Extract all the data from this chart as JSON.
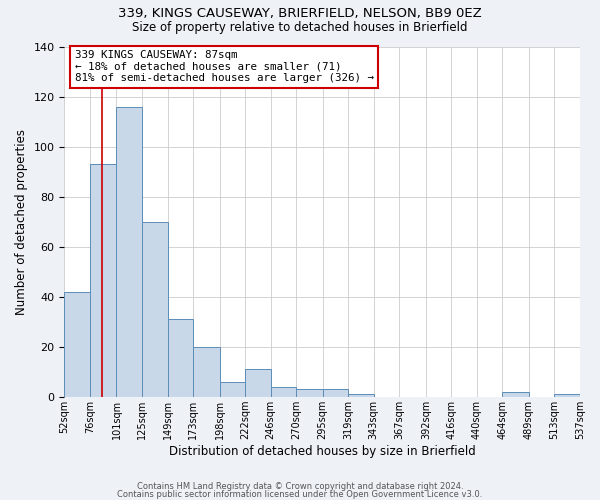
{
  "title1": "339, KINGS CAUSEWAY, BRIERFIELD, NELSON, BB9 0EZ",
  "title2": "Size of property relative to detached houses in Brierfield",
  "xlabel": "Distribution of detached houses by size in Brierfield",
  "ylabel": "Number of detached properties",
  "bar_color": "#c8d8e8",
  "bar_edge_color": "#5b8db8",
  "grid_color": "#cccccc",
  "annotation_box_edge": "#cc0000",
  "vline_color": "#cc0000",
  "bin_edges": [
    52,
    76,
    101,
    125,
    149,
    173,
    198,
    222,
    246,
    270,
    295,
    319,
    343,
    367,
    392,
    416,
    440,
    464,
    489,
    513,
    537
  ],
  "bar_heights": [
    42,
    93,
    116,
    70,
    31,
    20,
    6,
    11,
    4,
    3,
    3,
    1,
    0,
    0,
    0,
    0,
    0,
    2,
    0,
    1
  ],
  "vline_x": 87,
  "ylim": [
    0,
    140
  ],
  "yticks": [
    0,
    20,
    40,
    60,
    80,
    100,
    120,
    140
  ],
  "xtick_labels": [
    "52sqm",
    "76sqm",
    "101sqm",
    "125sqm",
    "149sqm",
    "173sqm",
    "198sqm",
    "222sqm",
    "246sqm",
    "270sqm",
    "295sqm",
    "319sqm",
    "343sqm",
    "367sqm",
    "392sqm",
    "416sqm",
    "440sqm",
    "464sqm",
    "489sqm",
    "513sqm",
    "537sqm"
  ],
  "annotation_text": "339 KINGS CAUSEWAY: 87sqm\n← 18% of detached houses are smaller (71)\n81% of semi-detached houses are larger (326) →",
  "footer1": "Contains HM Land Registry data © Crown copyright and database right 2024.",
  "footer2": "Contains public sector information licensed under the Open Government Licence v3.0.",
  "background_color": "#eef2f7",
  "plot_bg_color": "#ffffff"
}
